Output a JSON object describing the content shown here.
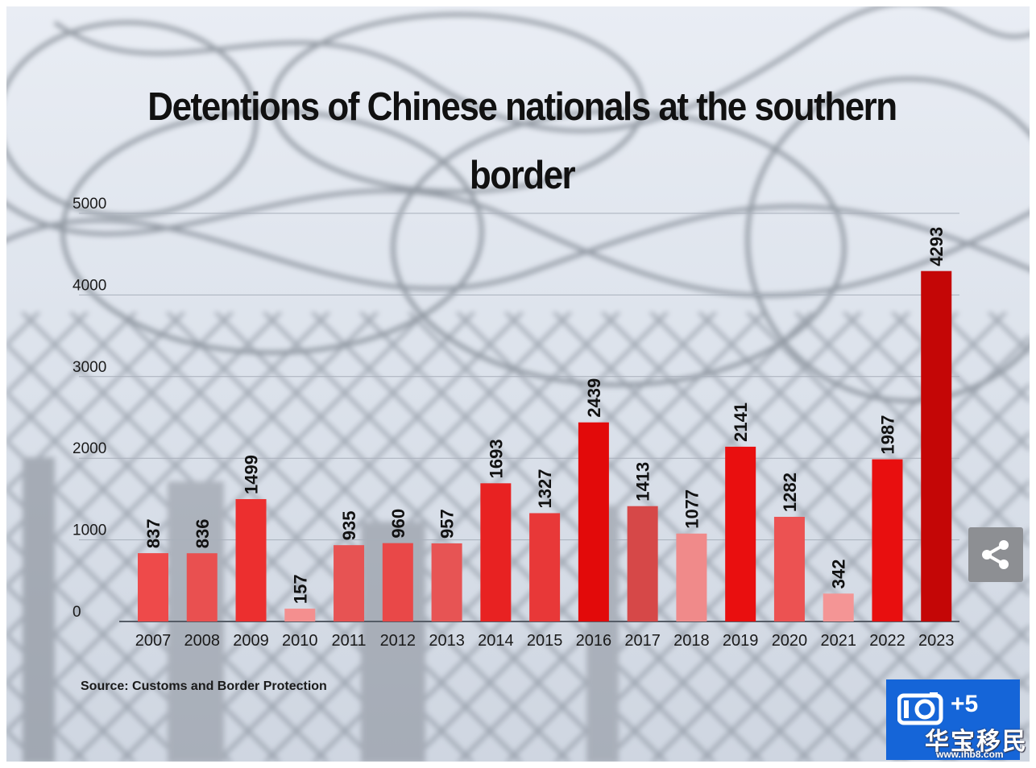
{
  "chart_data": {
    "type": "bar",
    "title": "Detentions of Chinese nationals at the southern border",
    "categories": [
      "2007",
      "2008",
      "2009",
      "2010",
      "2011",
      "2012",
      "2013",
      "2014",
      "2015",
      "2016",
      "2017",
      "2018",
      "2019",
      "2020",
      "2021",
      "2022",
      "2023"
    ],
    "values": [
      837,
      836,
      1499,
      157,
      935,
      960,
      957,
      1693,
      1327,
      2439,
      1413,
      1077,
      2141,
      1282,
      342,
      1987,
      4293
    ],
    "bar_colors": [
      "#ee4a4a",
      "#e95050",
      "#ec2f2f",
      "#f48f8f",
      "#e75353",
      "#e94848",
      "#e75454",
      "#e82222",
      "#e83838",
      "#e20a0a",
      "#d64848",
      "#f08a8a",
      "#e90f0f",
      "#ec5252",
      "#f49595",
      "#e80f0f",
      "#c40606"
    ],
    "yticks": [
      0,
      1000,
      2000,
      3000,
      4000,
      5000
    ],
    "ylim": [
      0,
      5000
    ],
    "data_labels_rotated": true,
    "grid": true,
    "source": "Source: Customs and Border Protection"
  },
  "overlay": {
    "share_icon": "share-icon",
    "gallery_icon": "camera-icon",
    "gallery_count": "+5",
    "watermark_text": "华宝移民",
    "watermark_url": "www.ihb8.com"
  }
}
